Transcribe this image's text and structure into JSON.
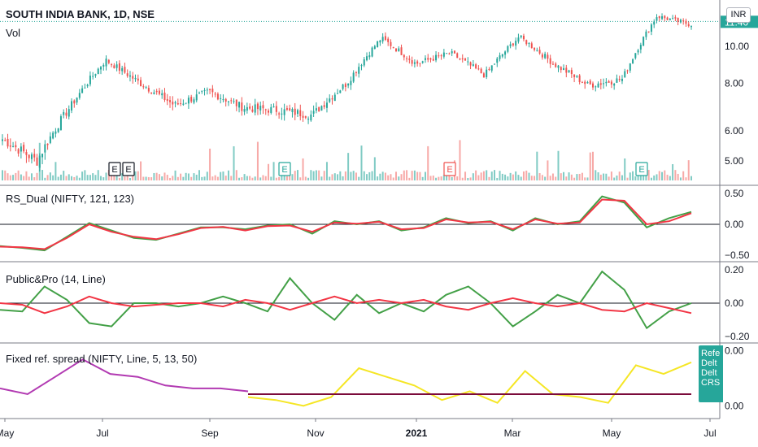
{
  "header": {
    "symbol_title": "SOUTH INDIA BANK, 1D, NSE",
    "volume_label": "Vol",
    "currency": "INR"
  },
  "panes": {
    "rs_dual_title": "RS_Dual (NIFTY, 121, 123)",
    "public_pro_title": "Public&Pro (14, Line)",
    "fixed_spread_title": "Fixed ref. spread (NIFTY, Line, 5, 13, 50)"
  },
  "side_tag": {
    "lines": [
      "Refe",
      "Delt",
      "Delt",
      "CRS"
    ]
  },
  "colors": {
    "up": "#26a69a",
    "down": "#ef5350",
    "volume_up": "#80cbc4",
    "volume_down": "#f7a9a7",
    "green_line": "#43a047",
    "red_line": "#f23645",
    "magenta_line": "#b23ab2",
    "yellow_line": "#f5e625",
    "maroon_line": "#7b0b3b",
    "zero_line": "#131722",
    "last_price_bg": "#26a69a"
  },
  "chart_data": [
    {
      "type": "candlestick",
      "title": "SOUTH INDIA BANK, 1D, NSE",
      "y_axis_scale": "log",
      "y_ticks": [
        "5.00",
        "6.00",
        "8.00",
        "10.00"
      ],
      "last_price_label": "11.40",
      "last_price": 11.4,
      "x_ticks": [
        "May",
        "Jul",
        "Sep",
        "Nov",
        "2021",
        "Mar",
        "May",
        "Jul"
      ],
      "approx_close_path": [
        [
          "May",
          5.7
        ],
        [
          "Jun-early",
          5.0
        ],
        [
          "Jun-late",
          7.0
        ],
        [
          "Jul-start",
          9.2
        ],
        [
          "Jul-mid",
          8.0
        ],
        [
          "Aug",
          7.0
        ],
        [
          "Sep-start",
          7.6
        ],
        [
          "Sep-end",
          6.9
        ],
        [
          "Oct",
          6.8
        ],
        [
          "Nov",
          6.6
        ],
        [
          "Dec-start",
          8.0
        ],
        [
          "Dec-mid",
          10.5
        ],
        [
          "Dec-end",
          9.0
        ],
        [
          "Jan",
          9.6
        ],
        [
          "Feb",
          8.4
        ],
        [
          "Mar-start",
          10.6
        ],
        [
          "Mar-end",
          9.0
        ],
        [
          "Apr",
          7.9
        ],
        [
          "May-start",
          8.2
        ],
        [
          "May-mid",
          12.0
        ],
        [
          "Jun",
          11.4
        ]
      ],
      "earnings_markers": [
        "E",
        "E",
        "E",
        "E",
        "E"
      ],
      "volume": "histogram"
    },
    {
      "type": "line",
      "title": "RS_Dual (NIFTY, 121, 123)",
      "y_ticks": [
        "0.50",
        "0.00",
        "−0.50"
      ],
      "series": [
        {
          "color": "#43a047",
          "values": [
            -0.35,
            -0.38,
            -0.42,
            -0.2,
            0.02,
            -0.1,
            -0.22,
            -0.25,
            -0.15,
            -0.05,
            -0.05,
            -0.08,
            -0.02,
            0.0,
            -0.15,
            0.05,
            0.0,
            0.05,
            -0.1,
            -0.05,
            0.1,
            0.02,
            0.05,
            -0.1,
            0.1,
            0.0,
            0.05,
            0.45,
            0.35,
            -0.05,
            0.1,
            0.2
          ]
        },
        {
          "color": "#f23645",
          "values": [
            -0.36,
            -0.37,
            -0.4,
            -0.22,
            0.0,
            -0.12,
            -0.2,
            -0.24,
            -0.16,
            -0.06,
            -0.04,
            -0.1,
            -0.03,
            -0.02,
            -0.12,
            0.03,
            0.01,
            0.04,
            -0.08,
            -0.06,
            0.08,
            0.03,
            0.04,
            -0.08,
            0.08,
            0.01,
            0.03,
            0.4,
            0.38,
            0.0,
            0.05,
            0.18
          ]
        }
      ],
      "zero_line": 0
    },
    {
      "type": "line",
      "title": "Public&Pro (14, Line)",
      "y_ticks": [
        "0.20",
        "0.00",
        "−0.20"
      ],
      "series": [
        {
          "color": "#43a047",
          "values": [
            -0.04,
            -0.05,
            0.1,
            0.02,
            -0.12,
            -0.14,
            0.0,
            0.0,
            -0.02,
            0.0,
            0.04,
            0.0,
            -0.05,
            0.15,
            0.0,
            -0.1,
            0.05,
            -0.06,
            0.0,
            -0.05,
            0.05,
            0.1,
            0.0,
            -0.14,
            -0.05,
            0.05,
            0.0,
            0.19,
            0.08,
            -0.15,
            -0.05,
            0.0
          ]
        },
        {
          "color": "#f23645",
          "values": [
            0.0,
            -0.01,
            -0.06,
            -0.02,
            0.04,
            0.0,
            -0.02,
            -0.01,
            0.0,
            0.0,
            -0.02,
            0.02,
            0.0,
            -0.04,
            0.0,
            0.04,
            0.0,
            0.02,
            0.0,
            0.02,
            -0.02,
            -0.04,
            0.0,
            0.03,
            0.0,
            -0.02,
            0.0,
            -0.04,
            -0.05,
            0.0,
            -0.03,
            -0.06
          ]
        }
      ],
      "zero_line": 0
    },
    {
      "type": "line",
      "title": "Fixed ref. spread (NIFTY, Line, 5, 13, 50)",
      "y_ticks": [
        "0.00",
        "0.00"
      ],
      "series": [
        {
          "color": "#b23ab2",
          "values": [
            0.06,
            0.04,
            0.1,
            0.16,
            0.11,
            0.1,
            0.07,
            0.06,
            0.06,
            0.05
          ]
        },
        {
          "color": "#f5e625",
          "values": [
            0.03,
            0.02,
            0.0,
            0.03,
            0.13,
            0.1,
            0.07,
            0.02,
            0.05,
            0.01,
            0.12,
            0.04,
            0.03,
            0.01,
            0.14,
            0.11,
            0.15
          ]
        },
        {
          "color": "#7b0b3b",
          "values": [
            0.04,
            0.04
          ]
        }
      ]
    }
  ]
}
